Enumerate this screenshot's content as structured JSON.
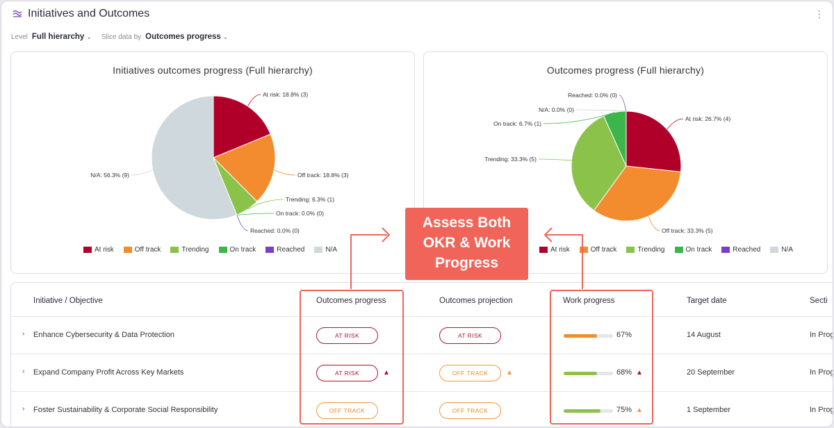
{
  "header": {
    "title": "Initiatives and Outcomes",
    "icon": "layers-icon"
  },
  "filters": {
    "level_label": "Level",
    "level_value": "Full hierarchy",
    "slice_label": "Slice data by",
    "slice_value": "Outcomes progress"
  },
  "colors": {
    "at_risk": "#b0002a",
    "off_track": "#f28c2e",
    "trending": "#8bc34a",
    "on_track": "#3cb54a",
    "reached": "#7b3fc4",
    "na": "#cfd8dc"
  },
  "legend": [
    "At risk",
    "Off track",
    "Trending",
    "On track",
    "Reached",
    "N/A"
  ],
  "chart_data": [
    {
      "type": "pie",
      "title": "Initiatives outcomes progress (Full hierarchy)",
      "slices": [
        {
          "name": "At risk",
          "value": 18.8,
          "count": 3,
          "label": "At risk: 18.8% (3)"
        },
        {
          "name": "Off track",
          "value": 18.8,
          "count": 3,
          "label": "Off track: 18.8% (3)"
        },
        {
          "name": "Trending",
          "value": 6.3,
          "count": 1,
          "label": "Trending: 6.3% (1)"
        },
        {
          "name": "On track",
          "value": 0.0,
          "count": 0,
          "label": "On track: 0.0% (0)"
        },
        {
          "name": "Reached",
          "value": 0.0,
          "count": 0,
          "label": "Reached: 0.0% (0)"
        },
        {
          "name": "N/A",
          "value": 56.3,
          "count": 9,
          "label": "N/A: 56.3% (9)"
        }
      ]
    },
    {
      "type": "pie",
      "title": "Outcomes progress (Full hierarchy)",
      "slices": [
        {
          "name": "At risk",
          "value": 26.7,
          "count": 4,
          "label": "At risk: 26.7% (4)"
        },
        {
          "name": "Off track",
          "value": 33.3,
          "count": 5,
          "label": "Off track: 33.3% (5)"
        },
        {
          "name": "Trending",
          "value": 33.3,
          "count": 5,
          "label": "Trending: 33.3% (5)"
        },
        {
          "name": "On track",
          "value": 6.7,
          "count": 1,
          "label": "On track: 6.7% (1)"
        },
        {
          "name": "N/A",
          "value": 0.0,
          "count": 0,
          "label": "N/A: 0.0% (0)"
        },
        {
          "name": "Reached",
          "value": 0.0,
          "count": 0,
          "label": "Reached: 0.0% (0)"
        }
      ]
    }
  ],
  "table": {
    "headers": [
      "Initiative / Objective",
      "Outcomes progress",
      "Outcomes projection",
      "Work progress",
      "Target date",
      "Section"
    ],
    "header_visible": [
      "Initiative / Objective",
      "Outcomes progress",
      "Outcomes projection",
      "Work progress",
      "Target date",
      "Secti"
    ],
    "rows": [
      {
        "name": "Enhance Cybersecurity & Data Protection",
        "outcomes": "AT RISK",
        "projection": "AT RISK",
        "work": 67,
        "work_label": "67%",
        "date": "14 August",
        "section": "In Prog"
      },
      {
        "name": "Expand Company Profit Across Key Markets",
        "outcomes": "AT RISK",
        "projection": "OFF TRACK",
        "work": 68,
        "work_label": "68%",
        "date": "20 September",
        "section": "In Prog"
      },
      {
        "name": "Foster Sustainability & Corporate Social Responsibility",
        "outcomes": "OFF TRACK",
        "projection": "OFF TRACK",
        "work": 75,
        "work_label": "75%",
        "date": "1 September",
        "section": "In Prog"
      }
    ]
  },
  "callout": {
    "line1": "Assess Both",
    "line2": "OKR & Work",
    "line3": "Progress"
  }
}
